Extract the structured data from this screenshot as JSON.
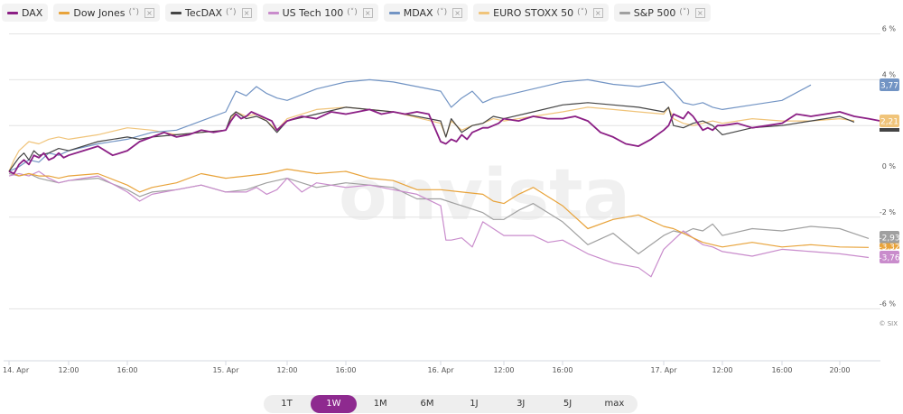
{
  "legend": [
    {
      "name": "DAX",
      "color": "#8b1f85",
      "has_chevron": false,
      "has_close": false
    },
    {
      "name": "Dow Jones",
      "color": "#e8a33a",
      "has_chevron": true,
      "has_close": true
    },
    {
      "name": "TecDAX",
      "color": "#444444",
      "has_chevron": true,
      "has_close": true
    },
    {
      "name": "US Tech 100",
      "color": "#c98ccc",
      "has_chevron": true,
      "has_close": true
    },
    {
      "name": "MDAX",
      "color": "#7294c4",
      "has_chevron": true,
      "has_close": true
    },
    {
      "name": "EURO STOXX 50",
      "color": "#f0c47a",
      "has_chevron": true,
      "has_close": true
    },
    {
      "name": "S&P 500",
      "color": "#a0a0a0",
      "has_chevron": true,
      "has_close": true
    }
  ],
  "legend_chevron": "(˅)",
  "legend_close": "×",
  "watermark": "onvista",
  "source_label": "© SIX",
  "range_buttons": [
    "1T",
    "1W",
    "1M",
    "6M",
    "1J",
    "3J",
    "5J",
    "max"
  ],
  "active_range": "1W",
  "chart_data": {
    "type": "line",
    "title": "",
    "xlabel": "",
    "ylabel": "",
    "ylim": [
      -7.9,
      6
    ],
    "y_ticks": [
      6,
      4,
      2,
      0,
      -2,
      -6
    ],
    "y_tick_labels": [
      "6 %",
      "4 %",
      "2 %",
      "0 %",
      "-2 %",
      "-6 %"
    ],
    "x_ticks": [
      0,
      12,
      16,
      24,
      36,
      40,
      48,
      60,
      64,
      72,
      84,
      88,
      92
    ],
    "x_tick_labels": [
      "14. Apr",
      "12:00",
      "16:00",
      "15. Apr",
      "12:00",
      "16:00",
      "16. Apr",
      "12:00",
      "16:00",
      "17. Apr",
      "12:00",
      "16:00",
      "20:00"
    ],
    "x_unit": "hours since 14. Apr 00:00 (compressed trading-time axis)",
    "grid": true,
    "end_labels": [
      {
        "series": "MDAX",
        "label": "3,77",
        "color": "#7294c4"
      },
      {
        "series": "EURO STOXX 50",
        "label": "2,21",
        "color": "#f0c47a"
      },
      {
        "series": "TecDAX",
        "label": "",
        "color": "#444444"
      },
      {
        "series": "S&P 500",
        "label": "-2,93",
        "color": "#a0a0a0"
      },
      {
        "series": "Dow Jones",
        "label": "-3,32",
        "color": "#e8a33a"
      },
      {
        "series": "US Tech 100",
        "label": "-3,76",
        "color": "#c98ccc"
      }
    ],
    "series": [
      {
        "name": "DAX",
        "color": "#8b1f85",
        "x": [
          0,
          1,
          2,
          3,
          4,
          5,
          6,
          7,
          8,
          9,
          10,
          11,
          12,
          13,
          14,
          15,
          16,
          17,
          18,
          19,
          20,
          21,
          22,
          23,
          24,
          25,
          26,
          27,
          28,
          29,
          30,
          31,
          32,
          33,
          34,
          35,
          36,
          37,
          38,
          39,
          40,
          41,
          42,
          43,
          44,
          45,
          46,
          47,
          48,
          49,
          50,
          51,
          52,
          53,
          54,
          55,
          56,
          57,
          58,
          59,
          60,
          61,
          62,
          63,
          64,
          65,
          66,
          67,
          68,
          69,
          70,
          71,
          72,
          73,
          74,
          75,
          76,
          77,
          78,
          79,
          80,
          81,
          82,
          83,
          84,
          85,
          86,
          87,
          88,
          89,
          90,
          91,
          92,
          93,
          94,
          95
        ],
        "y": [
          0.0,
          -0.1,
          0.3,
          0.5,
          0.3,
          0.7,
          0.6,
          0.8,
          0.5,
          0.6,
          0.8,
          0.6,
          0.7,
          0.9,
          1.1,
          0.7,
          0.9,
          1.3,
          1.5,
          1.7,
          1.5,
          1.6,
          1.8,
          1.7,
          1.8,
          2.2,
          2.5,
          2.3,
          2.4,
          2.6,
          2.5,
          2.4,
          2.3,
          2.2,
          1.8,
          2.0,
          2.2,
          2.4,
          2.3,
          2.6,
          2.5,
          2.6,
          2.7,
          2.5,
          2.6,
          2.5,
          2.6,
          2.5,
          1.3,
          1.2,
          1.4,
          1.3,
          1.6,
          1.4,
          1.7,
          1.8,
          1.9,
          1.9,
          2.0,
          2.1,
          2.3,
          2.2,
          2.4,
          2.3,
          2.3,
          2.4,
          2.2,
          1.7,
          1.5,
          1.2,
          1.1,
          1.4,
          1.8,
          2.0,
          2.5,
          2.4,
          2.3,
          2.6,
          2.4,
          2.1,
          1.8,
          1.9,
          1.8,
          2.0,
          2.0,
          2.1,
          1.9,
          2.0,
          2.1,
          2.5,
          2.4,
          2.5,
          2.6,
          2.4,
          2.3,
          2.2
        ]
      },
      {
        "name": "Dow Jones",
        "color": "#e8a33a",
        "x": [
          0,
          2,
          4,
          6,
          8,
          10,
          12,
          14,
          16,
          17,
          18,
          20,
          22,
          24,
          28,
          32,
          36,
          38,
          40,
          42,
          44,
          46,
          48,
          52,
          56,
          58,
          60,
          61,
          62,
          64,
          66,
          68,
          70,
          72,
          74,
          76,
          78,
          80,
          82,
          84,
          86,
          88,
          90,
          92,
          94
        ],
        "y": [
          0.0,
          -0.2,
          -0.1,
          -0.2,
          -0.2,
          -0.3,
          -0.2,
          -0.1,
          -0.6,
          -0.9,
          -0.7,
          -0.5,
          -0.1,
          -0.3,
          -0.2,
          -0.1,
          0.1,
          -0.1,
          0.0,
          -0.3,
          -0.4,
          -0.8,
          -0.8,
          -0.9,
          -1.0,
          -1.3,
          -1.4,
          -1.0,
          -0.7,
          -1.5,
          -2.5,
          -2.1,
          -1.9,
          -2.4,
          -2.5,
          -2.7,
          -2.9,
          -3.1,
          -3.2,
          -3.3,
          -3.1,
          -3.3,
          -3.2,
          -3.3,
          -3.32
        ]
      },
      {
        "name": "TecDAX",
        "color": "#444444",
        "x": [
          0,
          1,
          2,
          3,
          4,
          5,
          6,
          8,
          10,
          12,
          14,
          16,
          17,
          18,
          20,
          22,
          24,
          25,
          26,
          28,
          30,
          32,
          34,
          36,
          38,
          40,
          44,
          48,
          49,
          50,
          52,
          54,
          56,
          58,
          60,
          62,
          64,
          66,
          68,
          70,
          72,
          73,
          74,
          76,
          78,
          80,
          82,
          84,
          86,
          88,
          90,
          92,
          93
        ],
        "y": [
          0.0,
          0.3,
          0.6,
          0.8,
          0.5,
          0.9,
          0.7,
          0.8,
          1.0,
          0.9,
          1.3,
          1.5,
          1.4,
          1.5,
          1.6,
          1.7,
          1.8,
          2.4,
          2.6,
          2.3,
          2.4,
          2.2,
          1.7,
          2.2,
          2.5,
          2.8,
          2.6,
          2.2,
          1.5,
          2.3,
          1.7,
          2.0,
          2.1,
          2.4,
          2.3,
          2.6,
          2.9,
          3.0,
          2.9,
          2.8,
          2.6,
          2.8,
          2.0,
          1.9,
          2.1,
          2.2,
          2.0,
          1.6,
          1.9,
          2.0,
          2.2,
          2.4,
          2.15
        ]
      },
      {
        "name": "US Tech 100",
        "color": "#c98ccc",
        "x": [
          0,
          2,
          4,
          6,
          8,
          10,
          12,
          14,
          16,
          17,
          18,
          20,
          22,
          24,
          28,
          30,
          32,
          34,
          36,
          37,
          38,
          40,
          42,
          44,
          46,
          48,
          49,
          50,
          52,
          54,
          56,
          58,
          60,
          62,
          63,
          64,
          66,
          68,
          70,
          71,
          72,
          74,
          76,
          78,
          80,
          82,
          84,
          86,
          88,
          90,
          92,
          94
        ],
        "y": [
          -0.2,
          -0.1,
          -0.2,
          0.0,
          -0.3,
          -0.5,
          -0.4,
          -0.2,
          -0.9,
          -1.3,
          -1.0,
          -0.8,
          -0.6,
          -0.9,
          -0.9,
          -0.7,
          -1.0,
          -0.8,
          -0.3,
          -0.9,
          -0.5,
          -0.7,
          -0.6,
          -0.8,
          -1.0,
          -1.5,
          -3.0,
          -3.0,
          -2.9,
          -3.3,
          -2.2,
          -2.5,
          -2.8,
          -2.8,
          -3.1,
          -3.0,
          -3.6,
          -4.0,
          -4.2,
          -4.6,
          -3.4,
          -3.0,
          -2.6,
          -2.9,
          -3.2,
          -3.3,
          -3.5,
          -3.7,
          -3.4,
          -3.5,
          -3.6,
          -3.76
        ]
      },
      {
        "name": "MDAX",
        "color": "#7294c4",
        "x": [
          0,
          2,
          4,
          6,
          8,
          10,
          12,
          14,
          16,
          18,
          20,
          24,
          26,
          28,
          30,
          32,
          34,
          36,
          38,
          40,
          42,
          44,
          48,
          50,
          52,
          54,
          56,
          58,
          60,
          62,
          64,
          66,
          68,
          70,
          72,
          74,
          76,
          78,
          80,
          82,
          84,
          86,
          88,
          90
        ],
        "y": [
          0.0,
          0.2,
          0.5,
          0.4,
          0.8,
          0.7,
          0.9,
          1.2,
          1.4,
          1.7,
          1.8,
          2.6,
          3.5,
          3.3,
          3.7,
          3.4,
          3.2,
          3.1,
          3.6,
          3.9,
          4.0,
          3.9,
          3.5,
          2.8,
          3.2,
          3.5,
          3.0,
          3.2,
          3.3,
          3.6,
          3.9,
          4.0,
          3.8,
          3.7,
          3.9,
          3.5,
          3.0,
          2.9,
          3.0,
          2.8,
          2.7,
          2.9,
          3.1,
          3.77
        ]
      },
      {
        "name": "EURO STOXX 50",
        "color": "#f0c47a",
        "x": [
          0,
          1,
          2,
          3,
          4,
          6,
          8,
          10,
          12,
          14,
          16,
          18,
          20,
          24,
          25,
          26,
          28,
          30,
          32,
          34,
          36,
          38,
          40,
          44,
          48,
          49,
          50,
          52,
          54,
          56,
          58,
          60,
          62,
          64,
          66,
          68,
          70,
          72,
          73,
          74,
          76,
          78,
          80,
          82,
          84,
          86,
          88,
          90,
          92,
          93
        ],
        "y": [
          0.0,
          0.5,
          0.9,
          1.1,
          1.3,
          1.2,
          1.4,
          1.5,
          1.4,
          1.6,
          1.9,
          1.8,
          1.6,
          1.8,
          2.3,
          2.6,
          2.4,
          2.5,
          2.2,
          1.8,
          2.3,
          2.7,
          2.8,
          2.6,
          2.1,
          1.5,
          2.2,
          1.8,
          2.0,
          2.1,
          2.3,
          2.2,
          2.4,
          2.6,
          2.8,
          2.7,
          2.6,
          2.5,
          2.8,
          2.3,
          2.1,
          2.0,
          2.1,
          2.2,
          2.1,
          2.3,
          2.2,
          2.2,
          2.3,
          2.21
        ]
      },
      {
        "name": "S&P 500",
        "color": "#a0a0a0",
        "x": [
          0,
          2,
          4,
          6,
          8,
          10,
          12,
          14,
          16,
          17,
          18,
          20,
          22,
          24,
          28,
          32,
          36,
          38,
          40,
          42,
          44,
          46,
          48,
          52,
          56,
          58,
          60,
          61,
          62,
          64,
          66,
          68,
          70,
          72,
          74,
          76,
          78,
          80,
          82,
          84,
          86,
          88,
          90,
          92,
          94
        ],
        "y": [
          -0.1,
          -0.2,
          -0.1,
          -0.3,
          -0.4,
          -0.5,
          -0.4,
          -0.3,
          -0.8,
          -1.1,
          -0.9,
          -0.8,
          -0.6,
          -0.9,
          -0.8,
          -0.5,
          -0.3,
          -0.7,
          -0.5,
          -0.6,
          -0.7,
          -1.2,
          -1.2,
          -1.5,
          -1.8,
          -2.1,
          -2.1,
          -1.7,
          -1.4,
          -2.2,
          -3.2,
          -2.7,
          -3.6,
          -2.8,
          -2.6,
          -2.7,
          -2.5,
          -2.6,
          -2.3,
          -2.8,
          -2.5,
          -2.6,
          -2.4,
          -2.5,
          -2.93
        ]
      }
    ]
  }
}
